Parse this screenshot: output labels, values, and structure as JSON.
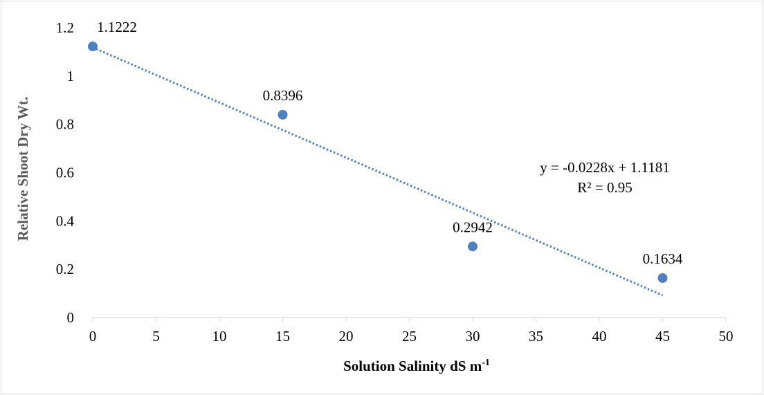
{
  "chart_data": {
    "type": "scatter",
    "title": "",
    "xlabel": "Solution Salinity dS m",
    "xlabel_superscript": "-1",
    "ylabel": "Relative Shoot Dry Wt.",
    "xlim": [
      0,
      50
    ],
    "ylim": [
      0,
      1.2
    ],
    "x_ticks": [
      "0",
      "5",
      "10",
      "15",
      "20",
      "25",
      "30",
      "35",
      "40",
      "45",
      "50"
    ],
    "y_ticks": [
      "0",
      "0.2",
      "0.4",
      "0.6",
      "0.8",
      "1",
      "1.2"
    ],
    "grid": false,
    "legend": "none",
    "series": [
      {
        "x": [
          0,
          15,
          30,
          45
        ],
        "y": [
          1.1222,
          0.8396,
          0.2942,
          0.1634
        ],
        "labels": [
          "1.1222",
          "0.8396",
          "0.2942",
          "0.1634"
        ],
        "color": "#4f81bd"
      }
    ],
    "trendline": {
      "type": "linear",
      "slope": -0.0228,
      "intercept": 1.1181,
      "x_range": [
        0,
        45
      ],
      "style": "dotted",
      "color": "#4f81bd",
      "equation": "y = -0.0228x + 1.1181",
      "r_squared": "R² = 0.95"
    }
  }
}
